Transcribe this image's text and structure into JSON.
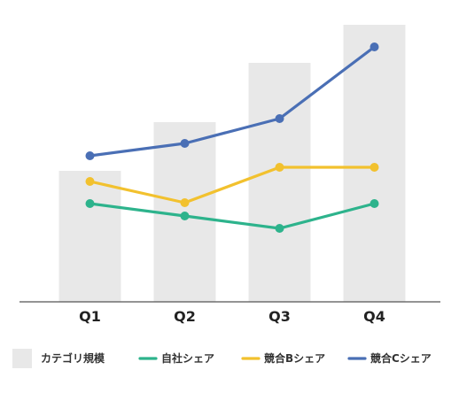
{
  "chart_data": {
    "type": "bar",
    "categories": [
      "Q1",
      "Q2",
      "Q3",
      "Q4"
    ],
    "bar_series": {
      "name": "カテゴリ規模",
      "values": [
        148,
        203,
        270,
        313
      ],
      "color": "#e8e8e8"
    },
    "series": [
      {
        "name": "自社シェア",
        "type": "line",
        "values": [
          111,
          97,
          83,
          111
        ],
        "color": "#2db38c"
      },
      {
        "name": "競合Bシェア",
        "type": "line",
        "values": [
          136,
          112,
          152,
          152
        ],
        "color": "#f2c12e"
      },
      {
        "name": "競合Cシェア",
        "type": "line",
        "values": [
          165,
          179,
          207,
          288
        ],
        "color": "#4a6fb5"
      }
    ],
    "ylim": [
      0,
      340
    ],
    "title": "",
    "xlabel": "",
    "ylabel": "",
    "grid": false,
    "legend": "bottom"
  }
}
